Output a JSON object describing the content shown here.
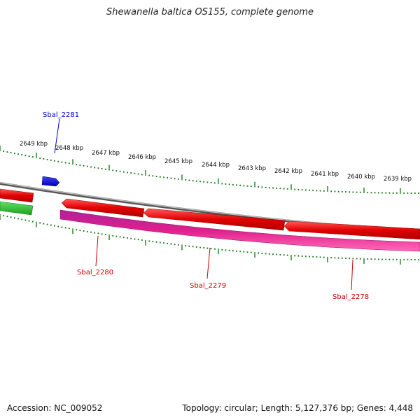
{
  "title": "Shewanella baltica OS155, complete genome",
  "footer": {
    "accession": "Accession: NC_009052",
    "summary": "Topology: circular; Length: 5,127,376 bp; Genes: 4,448"
  },
  "colors": {
    "backbone": "#8a8a8a",
    "tick": "#1e7a1e",
    "cds_forward_red": "#e00000",
    "cds_reverse_pink": "#e0208c",
    "cds_blue": "#1010e0",
    "cds_green": "#30c030",
    "label_blue": "#0000cc",
    "label_red": "#cc0000"
  },
  "kbp_ticks": [
    "2649 kbp",
    "2648 kbp",
    "2647 kbp",
    "2646 kbp",
    "2645 kbp",
    "2644 kbp",
    "2643 kbp",
    "2642 kbp",
    "2641 kbp",
    "2640 kbp",
    "2639 kbp"
  ],
  "gene_labels": {
    "sbal_2281": "Sbal_2281",
    "sbal_2280": "Sbal_2280",
    "sbal_2279": "Sbal_2279",
    "sbal_2278": "Sbal_2278"
  }
}
